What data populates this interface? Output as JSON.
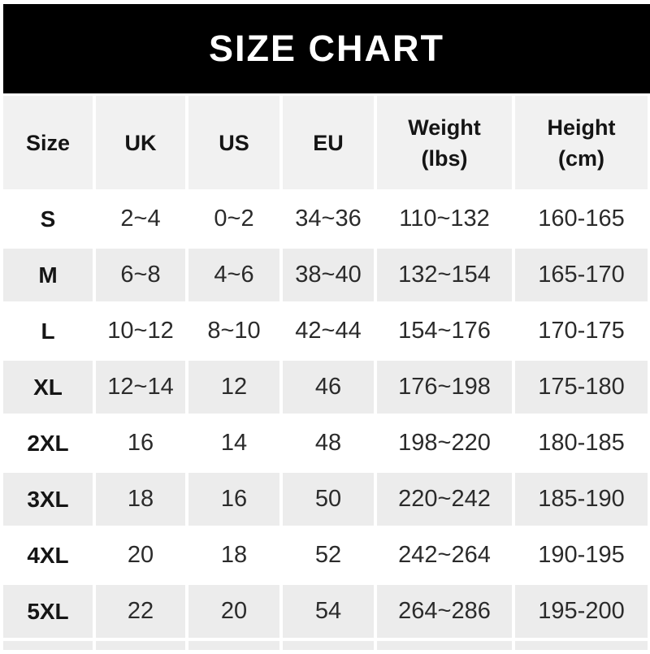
{
  "chart_data": {
    "type": "table",
    "title": "SIZE CHART",
    "columns": [
      {
        "key": "size",
        "label": "Size",
        "sub": ""
      },
      {
        "key": "uk",
        "label": "UK",
        "sub": ""
      },
      {
        "key": "us",
        "label": "US",
        "sub": ""
      },
      {
        "key": "eu",
        "label": "EU",
        "sub": ""
      },
      {
        "key": "weight",
        "label": "Weight",
        "sub": "(lbs)"
      },
      {
        "key": "height",
        "label": "Height",
        "sub": "(cm)"
      }
    ],
    "rows": [
      {
        "size": "S",
        "uk": "2~4",
        "us": "0~2",
        "eu": "34~36",
        "weight": "110~132",
        "height": "160-165"
      },
      {
        "size": "M",
        "uk": "6~8",
        "us": "4~6",
        "eu": "38~40",
        "weight": "132~154",
        "height": "165-170"
      },
      {
        "size": "L",
        "uk": "10~12",
        "us": "8~10",
        "eu": "42~44",
        "weight": "154~176",
        "height": "170-175"
      },
      {
        "size": "XL",
        "uk": "12~14",
        "us": "12",
        "eu": "46",
        "weight": "176~198",
        "height": "175-180"
      },
      {
        "size": "2XL",
        "uk": "16",
        "us": "14",
        "eu": "48",
        "weight": "198~220",
        "height": "180-185"
      },
      {
        "size": "3XL",
        "uk": "18",
        "us": "16",
        "eu": "50",
        "weight": "220~242",
        "height": "185-190"
      },
      {
        "size": "4XL",
        "uk": "20",
        "us": "18",
        "eu": "52",
        "weight": "242~264",
        "height": "190-195"
      },
      {
        "size": "5XL",
        "uk": "22",
        "us": "20",
        "eu": "54",
        "weight": "264~286",
        "height": "195-200"
      }
    ],
    "layout": {
      "legend": "none",
      "grid": "alternating-row-shading",
      "note": "white gaps act as column separators"
    }
  },
  "colors": {
    "banner_bg": "#000000",
    "banner_text": "#ffffff",
    "header_bg": "#f1f1f1",
    "row_bg": "#ffffff",
    "row_alt_bg": "#ececec",
    "text": "#2b2b2b",
    "label_text": "#151515"
  }
}
